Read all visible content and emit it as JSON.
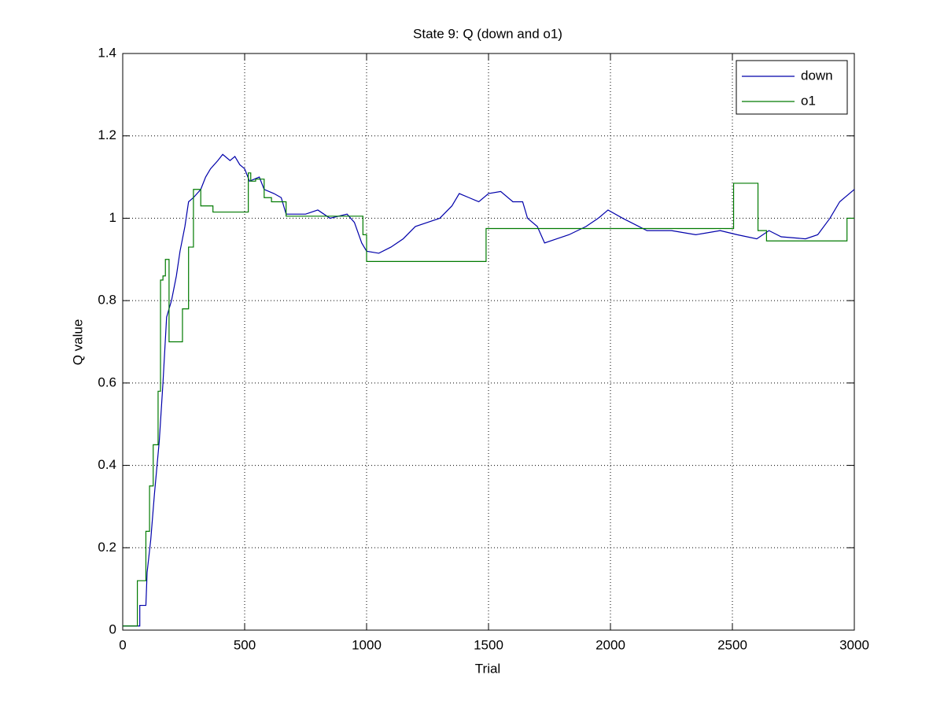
{
  "chart_data": {
    "type": "line",
    "title": "State 9: Q (down and o1)",
    "xlabel": "Trial",
    "ylabel": "Q value",
    "xlim": [
      0,
      3000
    ],
    "ylim": [
      0,
      1.4
    ],
    "xticks": [
      0,
      500,
      1000,
      1500,
      2000,
      2500,
      3000
    ],
    "yticks": [
      0,
      0.2,
      0.4,
      0.6,
      0.8,
      1,
      1.2,
      1.4
    ],
    "grid": true,
    "legend": "upper right",
    "series": [
      {
        "name": "down",
        "color": "#0000aa",
        "x": [
          0,
          70,
          70,
          95,
          100,
          115,
          130,
          150,
          165,
          180,
          200,
          220,
          235,
          255,
          270,
          290,
          320,
          340,
          360,
          390,
          410,
          440,
          460,
          480,
          500,
          520,
          560,
          580,
          620,
          650,
          670,
          750,
          800,
          850,
          920,
          950,
          980,
          1000,
          1050,
          1100,
          1150,
          1200,
          1250,
          1300,
          1350,
          1380,
          1420,
          1460,
          1500,
          1550,
          1600,
          1640,
          1660,
          1700,
          1730,
          1780,
          1830,
          1900,
          1950,
          1990,
          2050,
          2150,
          2250,
          2350,
          2450,
          2520,
          2600,
          2650,
          2700,
          2800,
          2850,
          2900,
          2940,
          3000
        ],
        "values": [
          0.01,
          0.01,
          0.06,
          0.06,
          0.14,
          0.22,
          0.33,
          0.46,
          0.6,
          0.76,
          0.8,
          0.86,
          0.92,
          0.98,
          1.04,
          1.05,
          1.07,
          1.1,
          1.12,
          1.14,
          1.155,
          1.14,
          1.15,
          1.13,
          1.12,
          1.09,
          1.1,
          1.07,
          1.06,
          1.05,
          1.01,
          1.01,
          1.02,
          1.0,
          1.01,
          0.99,
          0.94,
          0.92,
          0.915,
          0.93,
          0.95,
          0.98,
          0.99,
          1.0,
          1.03,
          1.06,
          1.05,
          1.04,
          1.06,
          1.065,
          1.04,
          1.04,
          1.0,
          0.98,
          0.94,
          0.95,
          0.96,
          0.98,
          1.0,
          1.02,
          1.0,
          0.97,
          0.97,
          0.96,
          0.97,
          0.96,
          0.95,
          0.97,
          0.955,
          0.95,
          0.96,
          1.0,
          1.04,
          1.07
        ]
      },
      {
        "name": "o1",
        "color": "#007a00",
        "x": [
          0,
          60,
          60,
          95,
          95,
          110,
          110,
          125,
          125,
          145,
          145,
          155,
          155,
          165,
          165,
          175,
          175,
          190,
          190,
          245,
          245,
          270,
          270,
          290,
          290,
          320,
          320,
          370,
          370,
          515,
          515,
          525,
          525,
          545,
          545,
          580,
          580,
          610,
          610,
          670,
          670,
          985,
          985,
          1000,
          1000,
          1490,
          1490,
          2505,
          2505,
          2605,
          2605,
          2640,
          2640,
          2970,
          2970,
          3000
        ],
        "values": [
          0.01,
          0.01,
          0.12,
          0.12,
          0.24,
          0.24,
          0.35,
          0.35,
          0.45,
          0.45,
          0.58,
          0.58,
          0.85,
          0.85,
          0.86,
          0.86,
          0.9,
          0.9,
          0.7,
          0.7,
          0.78,
          0.78,
          0.93,
          0.93,
          1.07,
          1.07,
          1.03,
          1.03,
          1.015,
          1.015,
          1.11,
          1.11,
          1.09,
          1.09,
          1.095,
          1.095,
          1.05,
          1.05,
          1.04,
          1.04,
          1.005,
          1.005,
          0.96,
          0.96,
          0.895,
          0.895,
          0.975,
          0.975,
          1.085,
          1.085,
          0.97,
          0.97,
          0.945,
          0.945,
          1.0,
          1.0
        ]
      }
    ]
  }
}
